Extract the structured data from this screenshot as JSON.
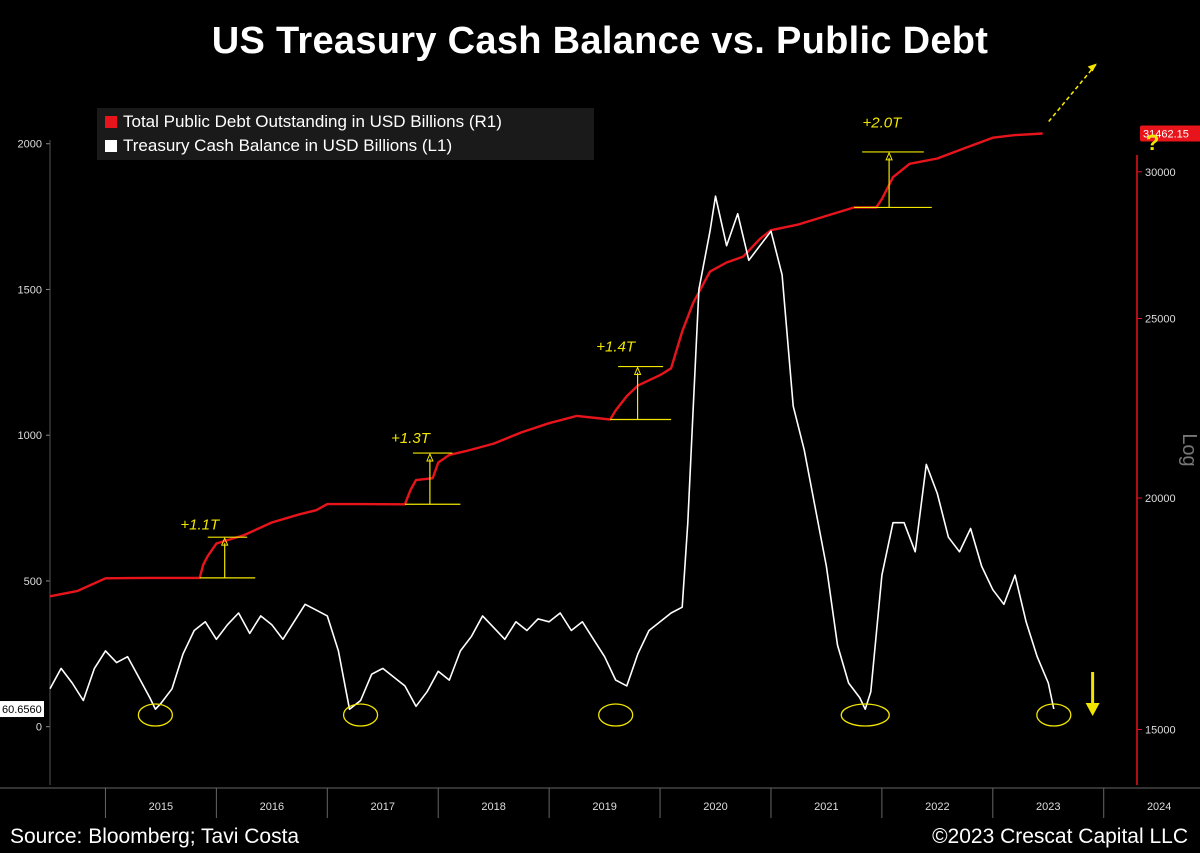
{
  "title": "US Treasury Cash Balance vs. Public Debt",
  "footer": {
    "source": "Source: Bloomberg; Tavi Costa",
    "copyright": "©2023 Crescat Capital LLC"
  },
  "colors": {
    "background": "#000000",
    "debt_series": "#e8141b",
    "cash_series": "#ffffff",
    "annotation": "#f2e600"
  },
  "chart_data": {
    "type": "line",
    "x_tick_labels": [
      "2015",
      "2016",
      "2017",
      "2018",
      "2019",
      "2020",
      "2021",
      "2022",
      "2023",
      "2024"
    ],
    "xlim": [
      2014.5,
      2024.3
    ],
    "left_axis": {
      "label": "",
      "ticks": [
        0,
        500,
        1000,
        1500,
        2000
      ],
      "ylim": [
        -200,
        2150
      ],
      "last_value_label": "60.6560"
    },
    "right_axis": {
      "label": "Log",
      "scale": "log",
      "ticks": [
        15000,
        20000,
        25000,
        30000
      ],
      "ylim": [
        14000,
        32800
      ],
      "last_value_label": "31462.15"
    },
    "legend": {
      "position": "top-left",
      "entries": [
        {
          "label": "Total Public Debt Outstanding in USD Billions (R1)",
          "color": "#e8141b"
        },
        {
          "label": "Treasury Cash Balance in USD Billions (L1)",
          "color": "#ffffff"
        }
      ]
    },
    "series": [
      {
        "name": "Total Public Debt Outstanding in USD Billions (R1)",
        "axis": "right",
        "color": "#e8141b",
        "points": [
          [
            2014.5,
            17700
          ],
          [
            2014.75,
            17820
          ],
          [
            2015.0,
            18100
          ],
          [
            2015.4,
            18110
          ],
          [
            2015.85,
            18110
          ],
          [
            2015.88,
            18400
          ],
          [
            2015.92,
            18600
          ],
          [
            2016.0,
            18900
          ],
          [
            2016.25,
            19100
          ],
          [
            2016.5,
            19400
          ],
          [
            2016.75,
            19600
          ],
          [
            2016.9,
            19700
          ],
          [
            2017.0,
            19850
          ],
          [
            2017.3,
            19850
          ],
          [
            2017.7,
            19845
          ],
          [
            2017.75,
            20200
          ],
          [
            2017.8,
            20450
          ],
          [
            2017.95,
            20500
          ],
          [
            2018.0,
            20900
          ],
          [
            2018.1,
            21100
          ],
          [
            2018.25,
            21200
          ],
          [
            2018.5,
            21400
          ],
          [
            2018.75,
            21700
          ],
          [
            2019.0,
            21950
          ],
          [
            2019.25,
            22150
          ],
          [
            2019.55,
            22050
          ],
          [
            2019.6,
            22300
          ],
          [
            2019.7,
            22700
          ],
          [
            2019.8,
            23000
          ],
          [
            2019.9,
            23150
          ],
          [
            2020.0,
            23300
          ],
          [
            2020.1,
            23500
          ],
          [
            2020.2,
            24600
          ],
          [
            2020.3,
            25500
          ],
          [
            2020.45,
            26500
          ],
          [
            2020.6,
            26800
          ],
          [
            2020.75,
            27000
          ],
          [
            2020.9,
            27600
          ],
          [
            2021.0,
            27900
          ],
          [
            2021.25,
            28100
          ],
          [
            2021.5,
            28400
          ],
          [
            2021.75,
            28700
          ],
          [
            2021.95,
            28700
          ],
          [
            2022.0,
            29000
          ],
          [
            2022.1,
            29800
          ],
          [
            2022.25,
            30300
          ],
          [
            2022.5,
            30500
          ],
          [
            2022.75,
            30900
          ],
          [
            2023.0,
            31300
          ],
          [
            2023.2,
            31400
          ],
          [
            2023.45,
            31462.15
          ]
        ]
      },
      {
        "name": "Treasury Cash Balance in USD Billions (L1)",
        "axis": "left",
        "color": "#ffffff",
        "points": [
          [
            2014.5,
            130
          ],
          [
            2014.6,
            200
          ],
          [
            2014.7,
            150
          ],
          [
            2014.8,
            90
          ],
          [
            2014.9,
            200
          ],
          [
            2015.0,
            260
          ],
          [
            2015.1,
            220
          ],
          [
            2015.2,
            240
          ],
          [
            2015.3,
            170
          ],
          [
            2015.4,
            100
          ],
          [
            2015.45,
            60
          ],
          [
            2015.5,
            80
          ],
          [
            2015.6,
            130
          ],
          [
            2015.7,
            250
          ],
          [
            2015.8,
            330
          ],
          [
            2015.9,
            360
          ],
          [
            2016.0,
            300
          ],
          [
            2016.1,
            350
          ],
          [
            2016.2,
            390
          ],
          [
            2016.3,
            320
          ],
          [
            2016.4,
            380
          ],
          [
            2016.5,
            350
          ],
          [
            2016.6,
            300
          ],
          [
            2016.7,
            360
          ],
          [
            2016.8,
            420
          ],
          [
            2016.9,
            400
          ],
          [
            2017.0,
            380
          ],
          [
            2017.1,
            260
          ],
          [
            2017.2,
            60
          ],
          [
            2017.3,
            90
          ],
          [
            2017.4,
            180
          ],
          [
            2017.5,
            200
          ],
          [
            2017.6,
            170
          ],
          [
            2017.7,
            140
          ],
          [
            2017.8,
            70
          ],
          [
            2017.9,
            120
          ],
          [
            2018.0,
            190
          ],
          [
            2018.1,
            160
          ],
          [
            2018.2,
            260
          ],
          [
            2018.3,
            310
          ],
          [
            2018.4,
            380
          ],
          [
            2018.5,
            340
          ],
          [
            2018.6,
            300
          ],
          [
            2018.7,
            360
          ],
          [
            2018.8,
            330
          ],
          [
            2018.9,
            370
          ],
          [
            2019.0,
            360
          ],
          [
            2019.1,
            390
          ],
          [
            2019.2,
            330
          ],
          [
            2019.3,
            360
          ],
          [
            2019.4,
            300
          ],
          [
            2019.5,
            240
          ],
          [
            2019.6,
            160
          ],
          [
            2019.7,
            140
          ],
          [
            2019.8,
            250
          ],
          [
            2019.9,
            330
          ],
          [
            2020.0,
            360
          ],
          [
            2020.1,
            390
          ],
          [
            2020.2,
            410
          ],
          [
            2020.25,
            700
          ],
          [
            2020.3,
            1100
          ],
          [
            2020.35,
            1500
          ],
          [
            2020.45,
            1700
          ],
          [
            2020.5,
            1820
          ],
          [
            2020.6,
            1650
          ],
          [
            2020.7,
            1760
          ],
          [
            2020.8,
            1600
          ],
          [
            2020.9,
            1650
          ],
          [
            2021.0,
            1700
          ],
          [
            2021.1,
            1550
          ],
          [
            2021.2,
            1100
          ],
          [
            2021.3,
            950
          ],
          [
            2021.4,
            750
          ],
          [
            2021.5,
            550
          ],
          [
            2021.6,
            280
          ],
          [
            2021.7,
            150
          ],
          [
            2021.8,
            100
          ],
          [
            2021.85,
            60
          ],
          [
            2021.9,
            120
          ],
          [
            2022.0,
            520
          ],
          [
            2022.1,
            700
          ],
          [
            2022.2,
            700
          ],
          [
            2022.3,
            600
          ],
          [
            2022.4,
            900
          ],
          [
            2022.5,
            800
          ],
          [
            2022.6,
            650
          ],
          [
            2022.7,
            600
          ],
          [
            2022.8,
            680
          ],
          [
            2022.9,
            550
          ],
          [
            2023.0,
            470
          ],
          [
            2023.1,
            420
          ],
          [
            2023.2,
            520
          ],
          [
            2023.3,
            360
          ],
          [
            2023.4,
            240
          ],
          [
            2023.5,
            150
          ],
          [
            2023.55,
            60.656
          ]
        ]
      }
    ],
    "annotations": [
      {
        "text": "+1.1T",
        "x": 2015.85,
        "y_right": 19000
      },
      {
        "text": "+1.3T",
        "x": 2017.75,
        "y_right": 21150
      },
      {
        "text": "+1.4T",
        "x": 2019.6,
        "y_right": 23700
      },
      {
        "text": "+2.0T",
        "x": 2022.0,
        "y_right": 31300
      },
      {
        "text": "?",
        "x": 2023.9,
        "y_right": 32000
      }
    ],
    "highlighted_lows": [
      2015.45,
      2017.3,
      2019.6,
      2021.85,
      2023.55
    ]
  }
}
